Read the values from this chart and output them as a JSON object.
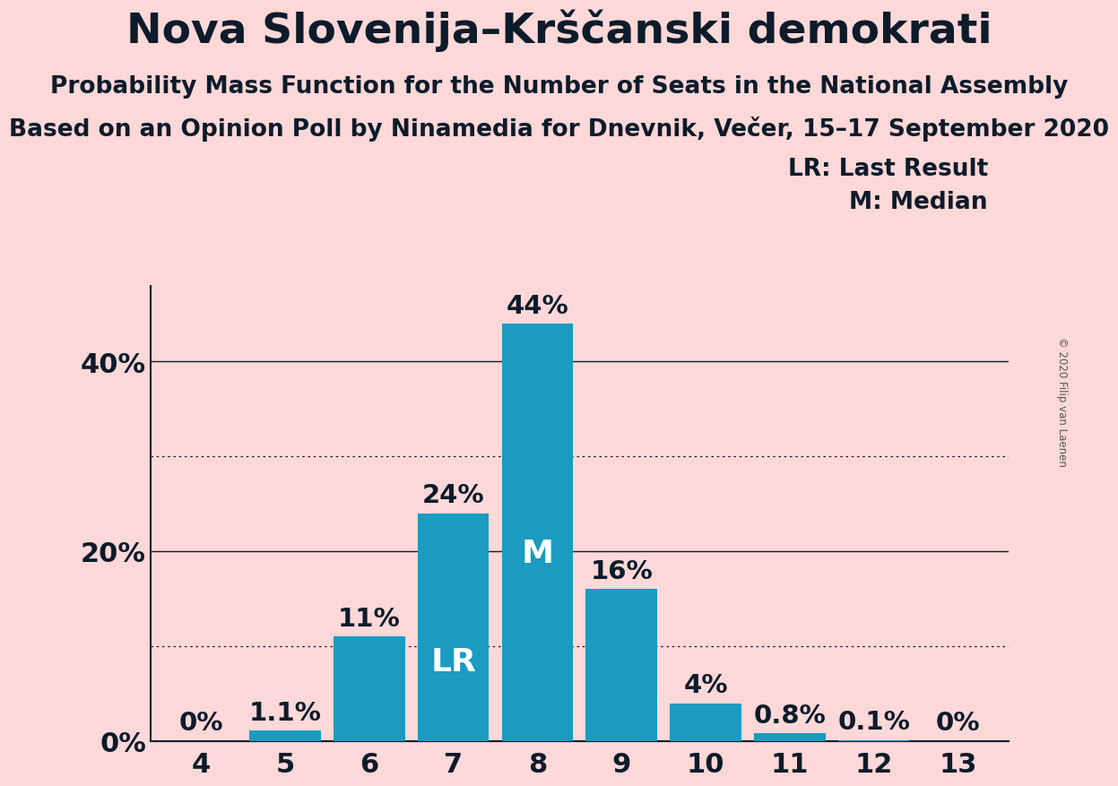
{
  "title": "Nova Slovenija–Krščanski demokrati",
  "subtitle1": "Probability Mass Function for the Number of Seats in the National Assembly",
  "subtitle2": "Based on an Opinion Poll by Ninamedia for Dnevnik, Večer, 15–17 September 2020",
  "copyright": "© 2020 Filip van Laenen",
  "categories": [
    4,
    5,
    6,
    7,
    8,
    9,
    10,
    11,
    12,
    13
  ],
  "values": [
    0.0,
    1.1,
    11.0,
    24.0,
    44.0,
    16.0,
    4.0,
    0.8,
    0.1,
    0.0
  ],
  "bar_color": "#1a9bbf",
  "background_color": "#fcd8d8",
  "label_LR": 7,
  "label_M": 8,
  "legend_LR": "LR: Last Result",
  "legend_M": "M: Median",
  "ylim": [
    0,
    48
  ],
  "yticks": [
    0,
    20,
    40
  ],
  "ytick_labels": [
    "0%",
    "20%",
    "40%"
  ],
  "solid_gridlines": [
    20,
    40
  ],
  "dotted_gridlines": [
    10,
    30
  ],
  "bar_label_color_outside": "#0d1b2a",
  "bar_label_color_inside": "#ffffff",
  "title_fontsize": 34,
  "subtitle_fontsize": 19,
  "axis_fontsize": 22,
  "bar_label_fontsize": 21,
  "legend_fontsize": 19,
  "title_color": "#0d1b2a"
}
